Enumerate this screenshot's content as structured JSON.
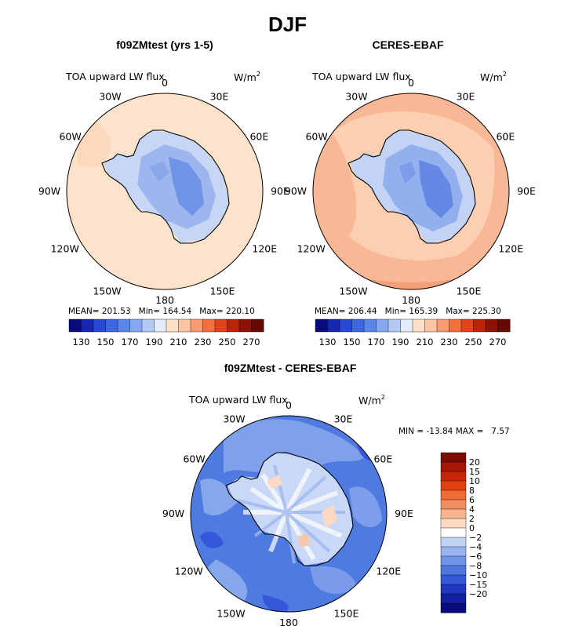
{
  "figure": {
    "title": "DJF",
    "colors": {
      "coast": "#000000",
      "outline": "#000000"
    }
  },
  "panels": {
    "model": {
      "title": "f09ZMtest (yrs 1-5)",
      "variable": "TOA upward LW flux",
      "units": "W/m",
      "units_exp": "2",
      "stats": {
        "mean_label": "MEAN=",
        "mean": "201.53",
        "min_label": "Min=",
        "min": "164.54",
        "max_label": "Max=",
        "max": "220.10"
      }
    },
    "obs": {
      "title": "CERES-EBAF",
      "variable": "TOA upward LW flux",
      "units": "W/m",
      "units_exp": "2",
      "stats": {
        "mean_label": "MEAN=",
        "mean": "206.44",
        "min_label": "Min=",
        "min": "165.39",
        "max_label": "Max=",
        "max": "225.30"
      }
    },
    "diff": {
      "title": "f09ZMtest - CERES-EBAF",
      "variable": "TOA upward LW flux",
      "units": "W/m",
      "units_exp": "2",
      "stats": {
        "min_label": "MIN =",
        "min": "-13.84",
        "max_label": "MAX =",
        "max": "7.57"
      }
    }
  },
  "chart_data": [
    {
      "type": "heatmap",
      "projection": "south-polar-stereographic",
      "title": "f09ZMtest (yrs 1-5)",
      "subtitle": "TOA upward LW flux",
      "units": "W/m2",
      "longitude_labels": [
        "0",
        "30E",
        "60E",
        "90E",
        "120E",
        "150E",
        "180",
        "150W",
        "120W",
        "90W",
        "60W",
        "30W"
      ],
      "colorbar": {
        "levels": [
          130,
          140,
          150,
          160,
          170,
          180,
          190,
          200,
          210,
          220,
          230,
          240,
          250,
          260,
          270
        ],
        "tick_labels": [
          "130",
          "150",
          "170",
          "190",
          "210",
          "230",
          "250",
          "270"
        ],
        "colors": [
          "#0a0a7c",
          "#1626b0",
          "#2a48d6",
          "#3d66e2",
          "#5a86ea",
          "#86a8f0",
          "#b3c9f6",
          "#e2ecfb",
          "#fde0c8",
          "#fbc4a2",
          "#f89b72",
          "#f3703e",
          "#e14418",
          "#bb2409",
          "#8c1205",
          "#640a02"
        ]
      },
      "stats": {
        "mean": 201.53,
        "min": 164.54,
        "max": 220.1
      }
    },
    {
      "type": "heatmap",
      "projection": "south-polar-stereographic",
      "title": "CERES-EBAF",
      "subtitle": "TOA upward LW flux",
      "units": "W/m2",
      "longitude_labels": [
        "0",
        "30E",
        "60E",
        "90E",
        "120E",
        "150E",
        "180",
        "150W",
        "120W",
        "90W",
        "60W",
        "30W"
      ],
      "colorbar": {
        "levels": [
          130,
          140,
          150,
          160,
          170,
          180,
          190,
          200,
          210,
          220,
          230,
          240,
          250,
          260,
          270
        ],
        "tick_labels": [
          "130",
          "150",
          "170",
          "190",
          "210",
          "230",
          "250",
          "270"
        ],
        "colors": [
          "#0a0a7c",
          "#1626b0",
          "#2a48d6",
          "#3d66e2",
          "#5a86ea",
          "#86a8f0",
          "#b3c9f6",
          "#e2ecfb",
          "#fde0c8",
          "#fbc4a2",
          "#f89b72",
          "#f3703e",
          "#e14418",
          "#bb2409",
          "#8c1205",
          "#640a02"
        ]
      },
      "stats": {
        "mean": 206.44,
        "min": 165.39,
        "max": 225.3
      }
    },
    {
      "type": "heatmap",
      "projection": "south-polar-stereographic",
      "title": "f09ZMtest - CERES-EBAF",
      "subtitle": "TOA upward LW flux",
      "units": "W/m2",
      "longitude_labels": [
        "0",
        "30E",
        "60E",
        "90E",
        "120E",
        "150E",
        "180",
        "150W",
        "120W",
        "90W",
        "60W",
        "30W"
      ],
      "colorbar": {
        "levels": [
          20,
          15,
          10,
          8,
          6,
          4,
          2,
          0,
          -2,
          -4,
          -6,
          -8,
          -10,
          -15,
          -20
        ],
        "tick_labels": [
          "20",
          "15",
          "10",
          "8",
          "6",
          "4",
          "2",
          "0",
          "−2",
          "−4",
          "−6",
          "−8",
          "−10",
          "−15",
          "−20"
        ],
        "colors": [
          "#7a0c04",
          "#a41706",
          "#c82508",
          "#e2400f",
          "#ef6a35",
          "#f48d60",
          "#f8b48f",
          "#fbd9c3",
          "#ffffff",
          "#c0d2f6",
          "#98b4f0",
          "#7095e8",
          "#4f76e0",
          "#3558db",
          "#1e38c2",
          "#1020a0",
          "#0a0a7a"
        ],
        "colors_order": "top-to-bottom"
      },
      "stats": {
        "min": -13.84,
        "max": 7.57
      }
    }
  ]
}
